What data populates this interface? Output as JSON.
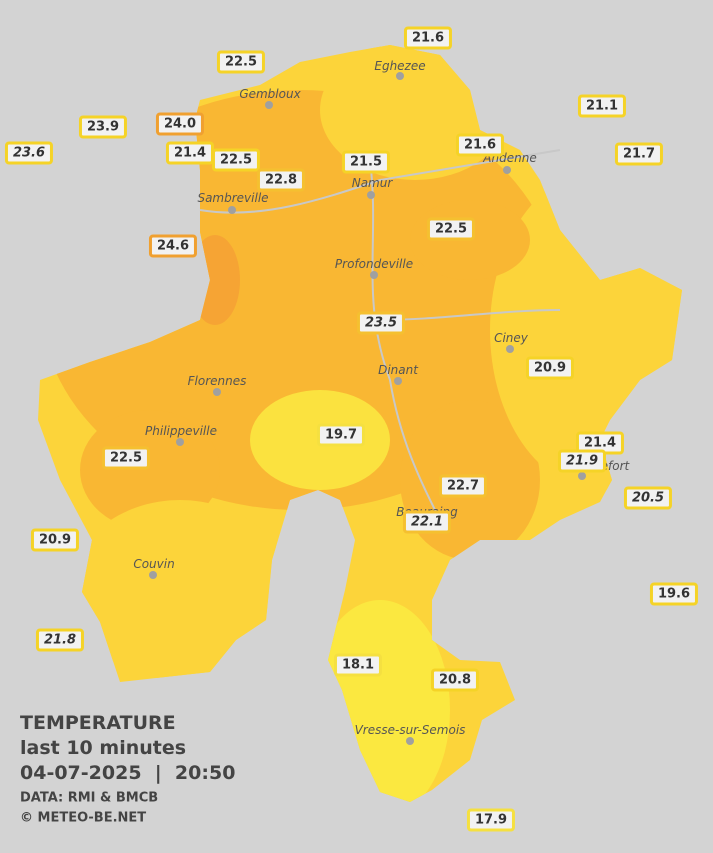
{
  "legend": {
    "title": "TEMPERATURE",
    "period": "last 10 minutes",
    "datetime": "04-07-2025  |  20:50",
    "source": "DATA: RMI & BMCB",
    "copyright": "© METEO-BE.NET"
  },
  "cities": [
    "Eghezee",
    "Gembloux",
    "Andenne",
    "Namur",
    "Sambreville",
    "Profondeville",
    "Ciney",
    "Dinant",
    "Florennes",
    "Philippeville",
    "Rochefort",
    "Beauraing",
    "Couvin",
    "Vresse-sur-Semois"
  ],
  "stations": [
    {
      "label": "21.6",
      "border": "#f5d327",
      "italic": false
    },
    {
      "label": "22.5",
      "border": "#f5d327",
      "italic": false
    },
    {
      "label": "21.1",
      "border": "#f5d327",
      "italic": false
    },
    {
      "label": "23.9",
      "border": "#f5d327",
      "italic": false
    },
    {
      "label": "24.0",
      "border": "#f0a030",
      "italic": false
    },
    {
      "label": "23.6",
      "border": "#f5d327",
      "italic": true
    },
    {
      "label": "21.4",
      "border": "#f5d327",
      "italic": false
    },
    {
      "label": "22.5",
      "border": "#f5d327",
      "italic": false
    },
    {
      "label": "21.6",
      "border": "#f5d327",
      "italic": false
    },
    {
      "label": "21.5",
      "border": "#f5d327",
      "italic": false
    },
    {
      "label": "21.7",
      "border": "#f5d327",
      "italic": false
    },
    {
      "label": "22.8",
      "border": "#f5c030",
      "italic": false
    },
    {
      "label": "22.5",
      "border": "#f5c030",
      "italic": false
    },
    {
      "label": "24.6",
      "border": "#f0a030",
      "italic": false
    },
    {
      "label": "23.5",
      "border": "#f5c030",
      "italic": true
    },
    {
      "label": "20.9",
      "border": "#f5d327",
      "italic": false
    },
    {
      "label": "19.7",
      "border": "#f5e040",
      "italic": false
    },
    {
      "label": "22.5",
      "border": "#f5c030",
      "italic": false
    },
    {
      "label": "21.4",
      "border": "#f5d327",
      "italic": false
    },
    {
      "label": "21.9",
      "border": "#f5d327",
      "italic": true
    },
    {
      "label": "20.5",
      "border": "#f5d327",
      "italic": true
    },
    {
      "label": "22.7",
      "border": "#f5c030",
      "italic": false
    },
    {
      "label": "22.1",
      "border": "#f5c030",
      "italic": true
    },
    {
      "label": "20.9",
      "border": "#f5d327",
      "italic": false
    },
    {
      "label": "19.6",
      "border": "#f5d327",
      "italic": false
    },
    {
      "label": "21.8",
      "border": "#f5d327",
      "italic": true
    },
    {
      "label": "18.1",
      "border": "#f5e040",
      "italic": false
    },
    {
      "label": "20.8",
      "border": "#f5d327",
      "italic": false
    },
    {
      "label": "17.9",
      "border": "#f5e040",
      "italic": false
    }
  ]
}
